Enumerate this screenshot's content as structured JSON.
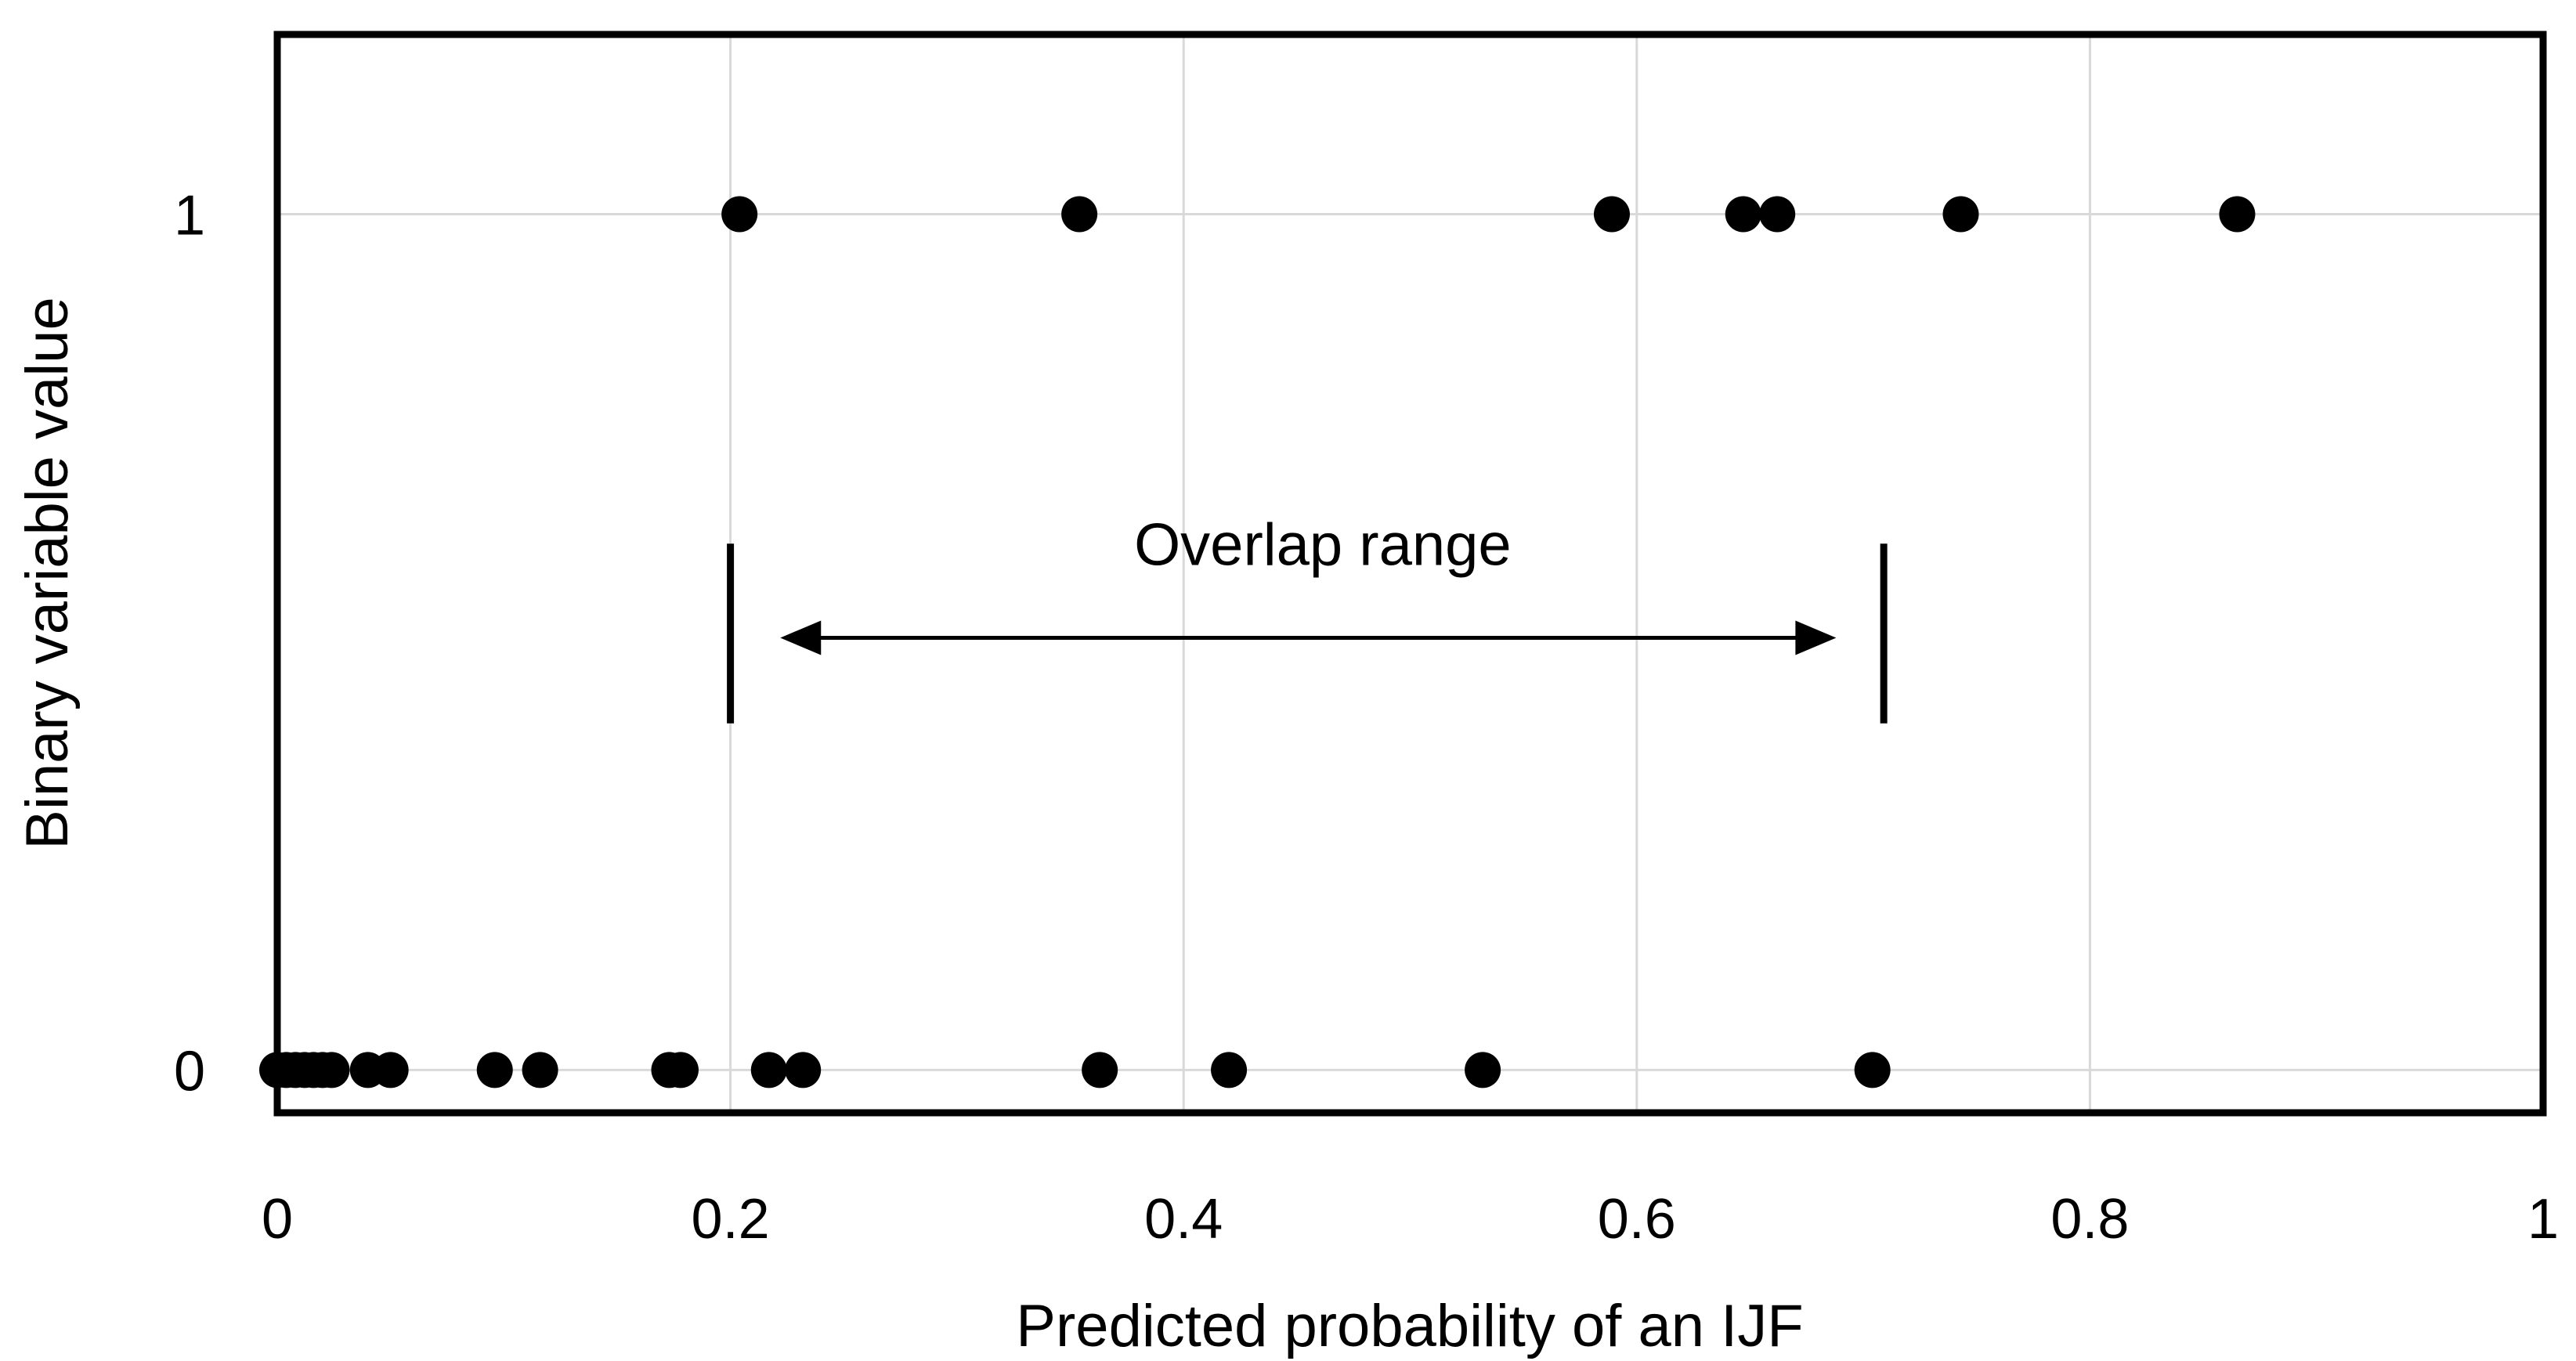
{
  "chart_data": {
    "type": "scatter",
    "title": "",
    "xlabel": "Predicted probability of an IJF",
    "ylabel": "Binary variable value",
    "xlim": [
      0,
      1
    ],
    "ylim": [
      -0.05,
      1.21
    ],
    "x_ticks": [
      0,
      0.2,
      0.4,
      0.6,
      0.8,
      1
    ],
    "x_tick_labels": [
      "0",
      "0.2",
      "0.4",
      "0.6",
      "0.8",
      "1"
    ],
    "y_ticks": [
      0,
      1
    ],
    "y_tick_labels": [
      "0",
      "1"
    ],
    "grid": "vertical",
    "legend": "none",
    "series": [
      {
        "points": [
          [
            0.204,
            1
          ],
          [
            0.354,
            1
          ],
          [
            0.589,
            1
          ],
          [
            0.647,
            1
          ],
          [
            0.662,
            1
          ],
          [
            0.743,
            1
          ],
          [
            0.865,
            1
          ],
          [
            0.0,
            0
          ],
          [
            0.004,
            0
          ],
          [
            0.008,
            0
          ],
          [
            0.012,
            0
          ],
          [
            0.016,
            0
          ],
          [
            0.02,
            0
          ],
          [
            0.024,
            0
          ],
          [
            0.04,
            0
          ],
          [
            0.05,
            0
          ],
          [
            0.096,
            0
          ],
          [
            0.116,
            0
          ],
          [
            0.173,
            0
          ],
          [
            0.178,
            0
          ],
          [
            0.217,
            0
          ],
          [
            0.232,
            0
          ],
          [
            0.363,
            0
          ],
          [
            0.42,
            0
          ],
          [
            0.532,
            0
          ],
          [
            0.704,
            0
          ]
        ],
        "color": "#000000"
      }
    ],
    "annotations": [
      {
        "text": "Overlap range",
        "range": [
          0.2,
          0.709
        ],
        "arrow_from": 0.222,
        "arrow_to": 0.688,
        "y": 0.505
      }
    ]
  }
}
